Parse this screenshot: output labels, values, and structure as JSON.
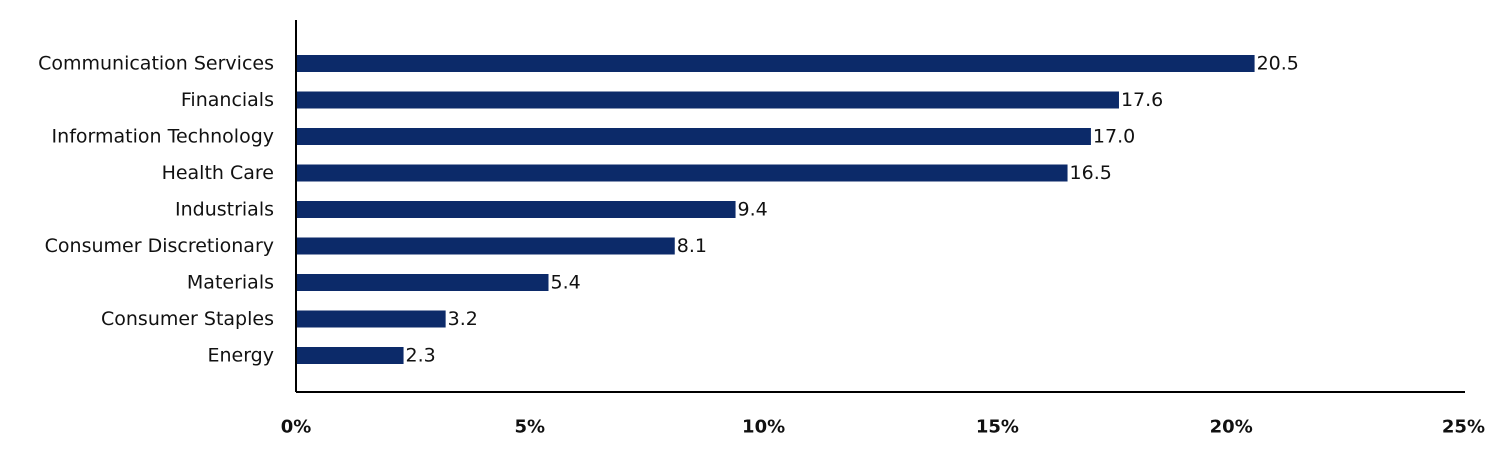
{
  "chart_data": {
    "type": "bar",
    "orientation": "horizontal",
    "categories": [
      "Communication Services",
      "Financials",
      "Information Technology",
      "Health Care",
      "Industrials",
      "Consumer Discretionary",
      "Materials",
      "Consumer Staples",
      "Energy"
    ],
    "values": [
      20.5,
      17.6,
      17.0,
      16.5,
      9.4,
      8.1,
      5.4,
      3.2,
      2.3
    ],
    "value_labels": [
      "20.5",
      "17.6",
      "17.0",
      "16.5",
      "9.4",
      "8.1",
      "5.4",
      "3.2",
      "2.3"
    ],
    "title": "",
    "xlabel": "",
    "ylabel": "",
    "xlim": [
      0,
      25
    ],
    "x_ticks": [
      0,
      5,
      10,
      15,
      20,
      25
    ],
    "x_tick_labels": [
      "0%",
      "5%",
      "10%",
      "15%",
      "20%",
      "25%"
    ],
    "grid": false,
    "legend": "none",
    "bar_color": "#0c2a69",
    "axis_color": "#000000"
  }
}
